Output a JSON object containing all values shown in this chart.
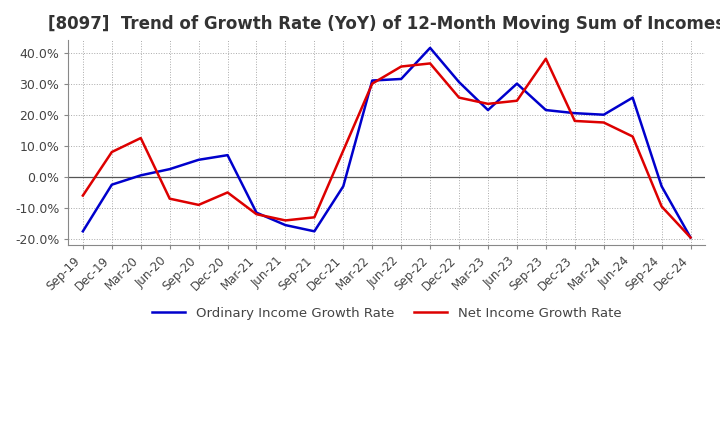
{
  "title": "[8097]  Trend of Growth Rate (YoY) of 12-Month Moving Sum of Incomes",
  "title_fontsize": 12,
  "ylim": [
    -0.22,
    0.44
  ],
  "yticks": [
    -0.2,
    -0.1,
    0.0,
    0.1,
    0.2,
    0.3,
    0.4
  ],
  "background_color": "#ffffff",
  "plot_bg_color": "#ffffff",
  "grid_color": "#aaaaaa",
  "legend_labels": [
    "Ordinary Income Growth Rate",
    "Net Income Growth Rate"
  ],
  "line_colors": [
    "#0000cc",
    "#dd0000"
  ],
  "line_width": 1.8,
  "x_labels": [
    "Sep-19",
    "Dec-19",
    "Mar-20",
    "Jun-20",
    "Sep-20",
    "Dec-20",
    "Mar-21",
    "Jun-21",
    "Sep-21",
    "Dec-21",
    "Mar-22",
    "Jun-22",
    "Sep-22",
    "Dec-22",
    "Mar-23",
    "Jun-23",
    "Sep-23",
    "Dec-23",
    "Mar-24",
    "Jun-24",
    "Sep-24",
    "Dec-24"
  ],
  "ordinary_income": [
    -0.175,
    -0.025,
    0.005,
    0.025,
    0.055,
    0.07,
    -0.115,
    -0.155,
    -0.175,
    -0.03,
    0.31,
    0.315,
    0.415,
    0.305,
    0.215,
    0.3,
    0.215,
    0.205,
    0.2,
    0.255,
    -0.03,
    -0.195
  ],
  "net_income": [
    -0.06,
    0.08,
    0.125,
    -0.07,
    -0.09,
    -0.05,
    -0.12,
    -0.14,
    -0.13,
    0.085,
    0.3,
    0.355,
    0.365,
    0.255,
    0.235,
    0.245,
    0.38,
    0.18,
    0.175,
    0.13,
    -0.095,
    -0.195
  ]
}
